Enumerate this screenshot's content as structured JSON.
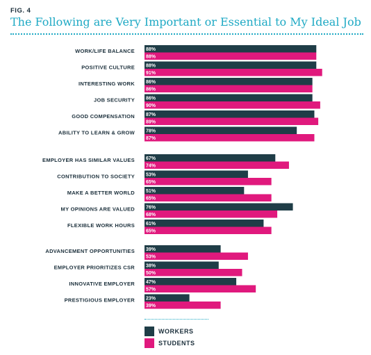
{
  "fig_label": "FIG. 4",
  "title": "The Following are Very Important or Essential to My Ideal Job",
  "colors": {
    "workers": "#1f3d47",
    "students": "#e0197d",
    "accent": "#1ea9c4",
    "label": "#1a2e3a"
  },
  "legend": {
    "workers": "WORKERS",
    "students": "STUDENTS"
  },
  "chart_data": {
    "type": "bar",
    "orientation": "horizontal",
    "xlim": [
      0,
      100
    ],
    "grid": false,
    "legend_position": "bottom",
    "groups": [
      {
        "categories": [
          "WORK/LIFE BALANCE",
          "POSITIVE CULTURE",
          "INTERESTING WORK",
          "JOB SECURITY",
          "GOOD COMPENSATION",
          "ABILITY TO LEARN & GROW"
        ],
        "workers": [
          88,
          88,
          86,
          86,
          87,
          78
        ],
        "students": [
          88,
          91,
          86,
          90,
          89,
          87
        ]
      },
      {
        "categories": [
          "EMPLOYER HAS SIMILAR VALUES",
          "CONTRIBUTION TO SOCIETY",
          "MAKE A BETTER WORLD",
          "MY OPINIONS ARE VALUED",
          "FLEXIBLE WORK HOURS"
        ],
        "workers": [
          67,
          53,
          51,
          76,
          61
        ],
        "students": [
          74,
          65,
          65,
          68,
          65
        ]
      },
      {
        "categories": [
          "ADVANCEMENT OPPORTUNITIES",
          "EMPLOYER PRIORITIZES CSR",
          "INNOVATIVE EMPLOYER",
          "PRESTIGIOUS EMPLOYER"
        ],
        "workers": [
          39,
          38,
          47,
          23
        ],
        "students": [
          53,
          50,
          57,
          39
        ]
      }
    ],
    "series": [
      {
        "name": "WORKERS",
        "color": "#1f3d47"
      },
      {
        "name": "STUDENTS",
        "color": "#e0197d"
      }
    ]
  }
}
